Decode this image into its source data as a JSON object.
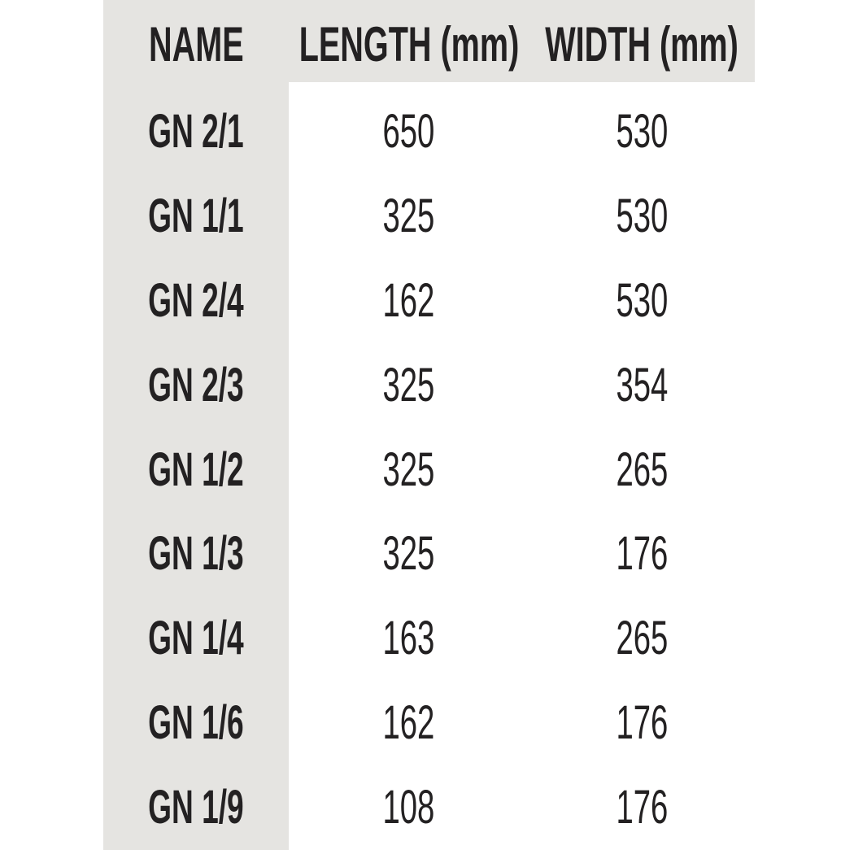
{
  "colors": {
    "band": "#e5e4e1",
    "text": "#232122",
    "page": "#ffffff"
  },
  "chart_data": {
    "type": "table",
    "title": "",
    "columns": [
      "NAME",
      "LENGTH (mm)",
      "WIDTH (mm)"
    ],
    "rows": [
      [
        "GN 2/1",
        "650",
        "530"
      ],
      [
        "GN 1/1",
        "325",
        "530"
      ],
      [
        "GN 2/4",
        "162",
        "530"
      ],
      [
        "GN 2/3",
        "325",
        "354"
      ],
      [
        "GN 1/2",
        "325",
        "265"
      ],
      [
        "GN 1/3",
        "325",
        "176"
      ],
      [
        "GN 1/4",
        "163",
        "265"
      ],
      [
        "GN 1/6",
        "162",
        "176"
      ],
      [
        "GN 1/9",
        "108",
        "176"
      ]
    ],
    "layout_hints": {
      "name_column_shaded": true,
      "header_row_shaded": true,
      "gridlines": false
    }
  }
}
